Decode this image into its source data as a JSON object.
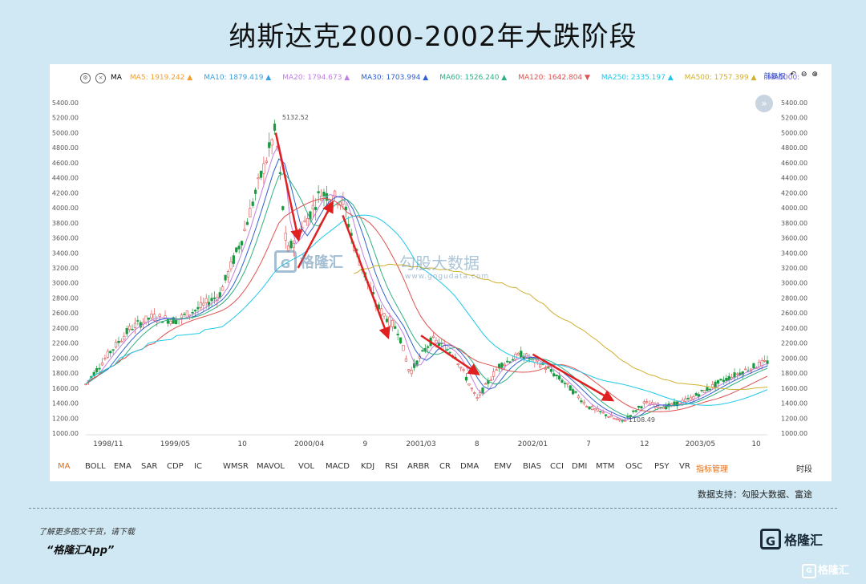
{
  "page_title": "纳斯达克2000-2002年大跌阶段",
  "toolbar": {
    "left_label": "MA",
    "ma_items": [
      {
        "label": "MA5: 1919.242",
        "color": "#f0a030",
        "arrow": "▲"
      },
      {
        "label": "MA10: 1879.419",
        "color": "#3aa0e0",
        "arrow": "▲"
      },
      {
        "label": "MA20: 1794.673",
        "color": "#c080e0",
        "arrow": "▲"
      },
      {
        "label": "MA30: 1703.994",
        "color": "#3060d0",
        "arrow": "▲"
      },
      {
        "label": "MA60: 1526.240",
        "color": "#30b080",
        "arrow": "▲"
      },
      {
        "label": "MA120: 1642.804",
        "color": "#e05050",
        "arrow": "▼"
      },
      {
        "label": "MA250: 2335.197",
        "color": "#20c8e8",
        "arrow": "▲"
      },
      {
        "label": "MA500: 1757.399",
        "color": "#d0b030",
        "arrow": "▲"
      },
      {
        "label": "MA1000:",
        "color": "#7060e0",
        "arrow": ""
      }
    ],
    "right_label": "前复权"
  },
  "watermark": {
    "brand": "格隆汇",
    "brand2": "勾股大数据",
    "url": "www.gogudata.com"
  },
  "indicator_bar": [
    "MA",
    "BOLL",
    "EMA",
    "SAR",
    "CDP",
    "IC",
    "WMSR",
    "MAVOL",
    "VOL",
    "MACD",
    "KDJ",
    "RSI",
    "ARBR",
    "CR",
    "DMA",
    "EMV",
    "BIAS",
    "CCI",
    "DMI",
    "MTM",
    "OSC",
    "PSY",
    "VR",
    "指标管理",
    "时段"
  ],
  "source": "数据支持：勾股大数据、富途",
  "footer": {
    "line1": "了解更多图文干货，请下载",
    "line2": "“格隆汇App”",
    "logo": "格隆汇",
    "logo_letter": "G",
    "corner": "格隆汇"
  },
  "chart_data": {
    "type": "candlestick",
    "title": "纳斯达克2000-2002年大跌阶段",
    "x_ticks": [
      "1998/11",
      "1999/05",
      "10",
      "2000/04",
      "9",
      "2001/03",
      "8",
      "2002/01",
      "7",
      "12",
      "2003/05",
      "10"
    ],
    "y_ticks": [
      1000,
      1200,
      1400,
      1600,
      1800,
      2000,
      2200,
      2400,
      2600,
      2800,
      3000,
      3200,
      3400,
      3600,
      3800,
      4000,
      4200,
      4400,
      4600,
      4800,
      5000,
      5200,
      5400
    ],
    "y_tick_labels": [
      "1000.00",
      "1200.00",
      "1400.00",
      "1600.00",
      "1800.00",
      "2000.00",
      "2200.00",
      "2400.00",
      "2600.00",
      "2800.00",
      "3000.00",
      "3200.00",
      "3400.00",
      "3600.00",
      "3800.00",
      "4000.00",
      "4200.00",
      "4400.00",
      "4600.00",
      "4800.00",
      "5000.00",
      "5200.00",
      "5400.00"
    ],
    "ylim": [
      1000,
      5400
    ],
    "annotations": [
      {
        "label": "5132.52",
        "x": "2000/03",
        "y": 5132.52
      },
      {
        "label": "1108.49",
        "x": "2002/10",
        "y": 1108.49
      }
    ],
    "price_path": [
      [
        "1998/10",
        1650
      ],
      [
        "1998/12",
        2050
      ],
      [
        "1999/02",
        2400
      ],
      [
        "1999/04",
        2550
      ],
      [
        "1999/06",
        2500
      ],
      [
        "1999/08",
        2650
      ],
      [
        "1999/10",
        2850
      ],
      [
        "1999/12",
        3600
      ],
      [
        "2000/01",
        4100
      ],
      [
        "2000/03",
        5050
      ],
      [
        "2000/04",
        3400
      ],
      [
        "2000/06",
        3900
      ],
      [
        "2000/07",
        4200
      ],
      [
        "2000/09",
        4100
      ],
      [
        "2000/10",
        3500
      ],
      [
        "2000/12",
        2700
      ],
      [
        "2001/02",
        2350
      ],
      [
        "2001/03",
        1800
      ],
      [
        "2001/05",
        2250
      ],
      [
        "2001/07",
        2050
      ],
      [
        "2001/09",
        1450
      ],
      [
        "2001/11",
        1900
      ],
      [
        "2002/01",
        2050
      ],
      [
        "2002/03",
        1900
      ],
      [
        "2002/05",
        1650
      ],
      [
        "2002/07",
        1350
      ],
      [
        "2002/10",
        1150
      ],
      [
        "2002/12",
        1400
      ],
      [
        "2003/02",
        1350
      ],
      [
        "2003/04",
        1450
      ],
      [
        "2003/07",
        1700
      ],
      [
        "2003/10",
        1900
      ],
      [
        "2003/11",
        1950
      ]
    ],
    "ma_lines": [
      {
        "name": "MA20",
        "color": "#c080e0"
      },
      {
        "name": "MA60",
        "color": "#30b080"
      },
      {
        "name": "MA120",
        "color": "#e05050"
      },
      {
        "name": "MA250",
        "color": "#20c8e8"
      },
      {
        "name": "MA500",
        "color": "#d0b030"
      }
    ],
    "arrow_color": "#e02020"
  }
}
